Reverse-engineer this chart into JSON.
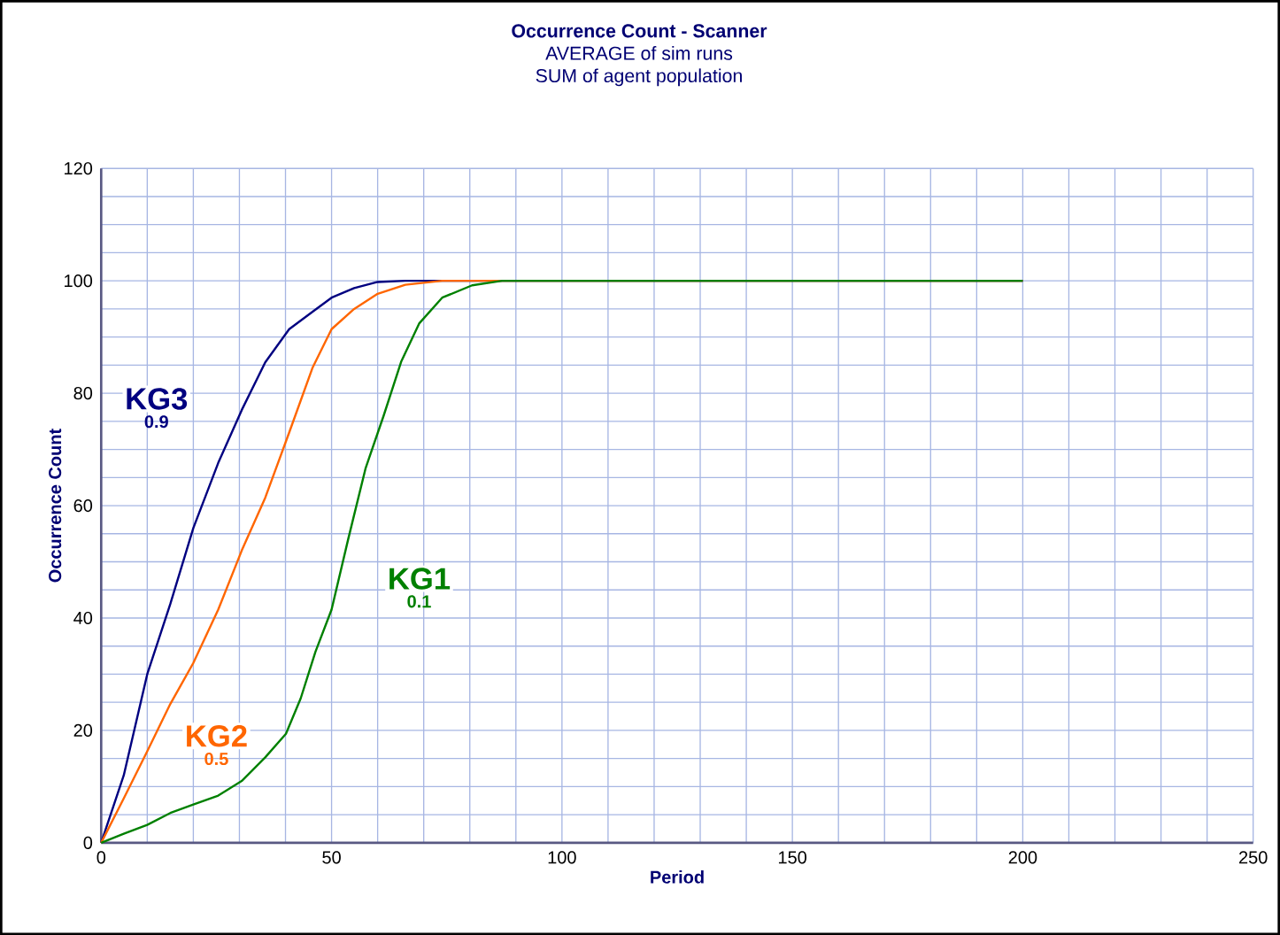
{
  "chart_data": {
    "type": "line",
    "title": "Occurrence Count - Scanner",
    "subtitle": "AVERAGE of sim runs\nSUM of agent population",
    "xlabel": "Period",
    "ylabel": "Occurrence Count",
    "xlim": [
      0,
      250
    ],
    "ylim": [
      0,
      120
    ],
    "xticks": [
      0,
      {
        "value": 10,
        "label": null
      },
      {
        "value": 20,
        "label": null
      },
      {
        "value": 30,
        "label": null
      },
      {
        "value": 40,
        "label": null
      },
      50,
      {
        "value": 60,
        "label": null
      },
      {
        "value": 70,
        "label": null
      },
      {
        "value": 80,
        "label": null
      },
      {
        "value": 90,
        "label": null
      },
      100,
      {
        "value": 110,
        "label": null
      },
      {
        "value": 120,
        "label": null
      },
      {
        "value": 130,
        "label": null
      },
      {
        "value": 140,
        "label": null
      },
      150,
      {
        "value": 160,
        "label": null
      },
      {
        "value": 170,
        "label": null
      },
      {
        "value": 180,
        "label": null
      },
      {
        "value": 190,
        "label": null
      },
      200,
      {
        "value": 210,
        "label": null
      },
      {
        "value": 220,
        "label": null
      },
      {
        "value": 230,
        "label": null
      },
      {
        "value": 240,
        "label": null
      },
      250
    ],
    "yticks": [
      0,
      {
        "value": 5,
        "label": null
      },
      {
        "value": 10,
        "label": null
      },
      {
        "value": 15,
        "label": null
      },
      20,
      {
        "value": 25,
        "label": null
      },
      {
        "value": 30,
        "label": null
      },
      {
        "value": 35,
        "label": null
      },
      40,
      {
        "value": 45,
        "label": null
      },
      {
        "value": 50,
        "label": null
      },
      {
        "value": 55,
        "label": null
      },
      60,
      {
        "value": 65,
        "label": null
      },
      {
        "value": 70,
        "label": null
      },
      {
        "value": 75,
        "label": null
      },
      80,
      {
        "value": 85,
        "label": null
      },
      {
        "value": 90,
        "label": null
      },
      {
        "value": 95,
        "label": null
      },
      100,
      {
        "value": 105,
        "label": null
      },
      {
        "value": 110,
        "label": null
      },
      {
        "value": 115,
        "label": null
      },
      120
    ],
    "grid": true,
    "marker": "none",
    "line_style": "solid",
    "series": [
      {
        "name": "KG3",
        "color": "#000080",
        "x": [
          0,
          4.9,
          10,
          15,
          20,
          25.4,
          30.5,
          35.6,
          40.8,
          45.9,
          50,
          54.9,
          60,
          66,
          200
        ],
        "values": [
          0,
          12,
          30,
          42.5,
          56,
          67.6,
          77,
          85.5,
          91.4,
          94.5,
          97,
          98.7,
          99.8,
          100,
          100
        ]
      },
      {
        "name": "KG2",
        "color": "#ff6600",
        "x": [
          0,
          4.9,
          10,
          15,
          20,
          25.4,
          30.5,
          35.6,
          40.8,
          45.9,
          50,
          54.9,
          60,
          66,
          74,
          200
        ],
        "values": [
          0,
          7.9,
          16.3,
          24.7,
          32,
          41.5,
          52,
          61.4,
          73,
          84.6,
          91.4,
          95,
          97.7,
          99.3,
          100,
          100
        ]
      },
      {
        "name": "KG1",
        "color": "#008000",
        "x": [
          0,
          4.9,
          10,
          15,
          20,
          25.4,
          30.5,
          35.6,
          40.1,
          43.3,
          46.5,
          50,
          53.6,
          57.4,
          61.3,
          65.1,
          69,
          74,
          80.5,
          87,
          200
        ],
        "values": [
          0,
          1.6,
          3.2,
          5.3,
          6.8,
          8.4,
          11,
          15.2,
          19.4,
          25.7,
          34,
          41.5,
          54,
          66.7,
          76,
          85.6,
          92.4,
          97,
          99.2,
          100,
          100
        ]
      }
    ],
    "annotations": [
      "0.9",
      "0.5",
      "0.1"
    ]
  }
}
